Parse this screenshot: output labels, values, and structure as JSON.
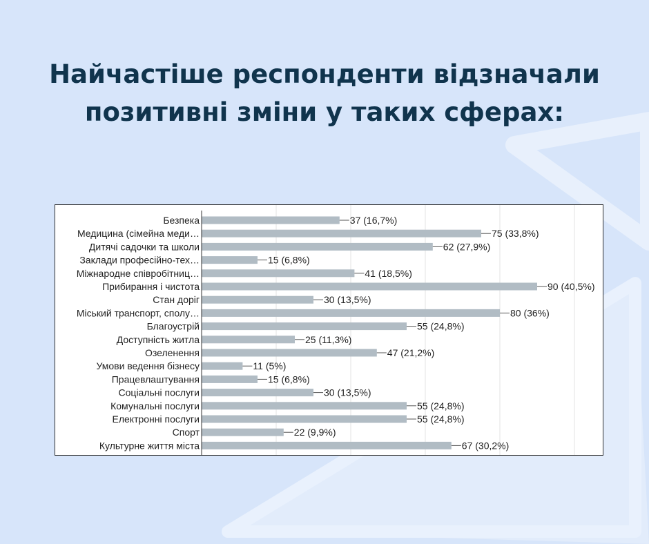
{
  "headline": {
    "line1": "Найчастіше респонденти відзначали",
    "line2": "позитивні зміни у таких сферах:"
  },
  "colors": {
    "background": "#d7e5fa",
    "headline": "#10344d",
    "bar": "#b1bcc4",
    "grid": "#e3e3e3"
  },
  "chart_data": {
    "type": "bar",
    "orientation": "horizontal",
    "categories": [
      "Безпека",
      "Медицина (сімейна меди…",
      "Дитячі садочки та школи",
      "Заклади професійно-тех…",
      "Міжнародне співробітниц…",
      "Прибирання і чистота",
      "Стан доріг",
      "Міський транспорт, сполу…",
      "Благоустрій",
      "Доступність житла",
      "Озеленення",
      "Умови ведення бізнесу",
      "Працевлаштування",
      "Соціальні послуги",
      "Комунальні послуги",
      "Електронні послуги",
      "Спорт",
      "Культурне життя міста"
    ],
    "values": [
      37,
      75,
      62,
      15,
      41,
      90,
      30,
      80,
      55,
      25,
      47,
      11,
      15,
      30,
      55,
      55,
      22,
      67
    ],
    "labels": [
      "37 (16,7%)",
      "75 (33,8%)",
      "62 (27,9%)",
      "15 (6,8%)",
      "41 (18,5%)",
      "90 (40,5%)",
      "30 (13,5%)",
      "80 (36%)",
      "55 (24,8%)",
      "25 (11,3%)",
      "47 (21,2%)",
      "11 (5%)",
      "15 (6,8%)",
      "30 (13,5%)",
      "55 (24,8%)",
      "55 (24,8%)",
      "22 (9,9%)",
      "67 (30,2%)"
    ],
    "xlim": [
      0,
      100
    ],
    "grid": true,
    "legend": "none"
  }
}
